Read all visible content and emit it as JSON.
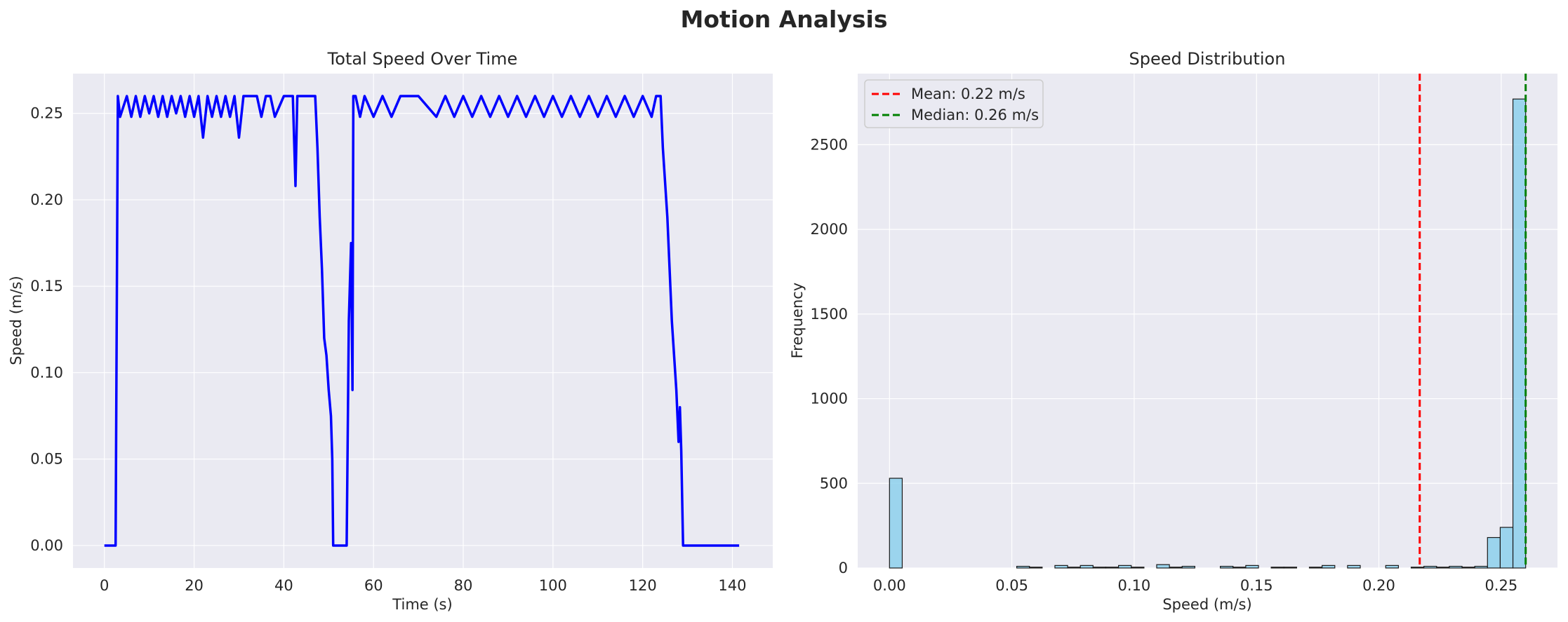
{
  "figure": {
    "title": "Motion Analysis"
  },
  "chart_data": [
    {
      "type": "line",
      "title": "Total Speed Over Time",
      "xlabel": "Time (s)",
      "ylabel": "Speed (m/s)",
      "xlim": [
        -7,
        149
      ],
      "ylim": [
        -0.013,
        0.273
      ],
      "xticks": [
        0,
        20,
        40,
        60,
        80,
        100,
        120,
        140
      ],
      "yticks": [
        0.0,
        0.05,
        0.1,
        0.15,
        0.2,
        0.25
      ],
      "grid": true,
      "colors": {
        "line": "#0000ff",
        "background": "#eaeaf2"
      },
      "series": [
        {
          "x": [
            0,
            2.5,
            3.0,
            3.5,
            5,
            6,
            7,
            8,
            9,
            10,
            11,
            12,
            13,
            14,
            15,
            16,
            17,
            18,
            19,
            20,
            21,
            22,
            23,
            24,
            25,
            26,
            27,
            28,
            29,
            30,
            31,
            32,
            34,
            35,
            36,
            37,
            38,
            40,
            41,
            42,
            42.6,
            43,
            44,
            45,
            46,
            47,
            47.5,
            48,
            48.5,
            49,
            49.5,
            50,
            50.5,
            50.8,
            51,
            54,
            54.5,
            55,
            55.3,
            55.5,
            56,
            57,
            58,
            60,
            62,
            64,
            66,
            70,
            74,
            76,
            78,
            80,
            82,
            84,
            86,
            88,
            90,
            92,
            94,
            96,
            98,
            100,
            102,
            104,
            106,
            108,
            110,
            112,
            114,
            116,
            118,
            120,
            122,
            123,
            124,
            124.5,
            125,
            125.5,
            126,
            126.5,
            127,
            127.5,
            128,
            128.3,
            128.6,
            129,
            130,
            141.5
          ],
          "y": [
            0,
            0,
            0.26,
            0.248,
            0.26,
            0.248,
            0.26,
            0.248,
            0.26,
            0.25,
            0.26,
            0.248,
            0.26,
            0.248,
            0.26,
            0.25,
            0.26,
            0.248,
            0.26,
            0.248,
            0.26,
            0.236,
            0.26,
            0.248,
            0.26,
            0.248,
            0.26,
            0.248,
            0.26,
            0.236,
            0.26,
            0.26,
            0.26,
            0.248,
            0.26,
            0.26,
            0.248,
            0.26,
            0.26,
            0.26,
            0.208,
            0.26,
            0.26,
            0.26,
            0.26,
            0.26,
            0.23,
            0.19,
            0.16,
            0.12,
            0.11,
            0.09,
            0.075,
            0.05,
            0,
            0,
            0.13,
            0.175,
            0.09,
            0.26,
            0.26,
            0.248,
            0.26,
            0.248,
            0.26,
            0.248,
            0.26,
            0.26,
            0.248,
            0.26,
            0.248,
            0.26,
            0.248,
            0.26,
            0.248,
            0.26,
            0.248,
            0.26,
            0.248,
            0.26,
            0.248,
            0.26,
            0.248,
            0.26,
            0.248,
            0.26,
            0.248,
            0.26,
            0.248,
            0.26,
            0.248,
            0.26,
            0.248,
            0.26,
            0.26,
            0.23,
            0.21,
            0.19,
            0.16,
            0.13,
            0.11,
            0.09,
            0.06,
            0.08,
            0.055,
            0,
            0,
            0
          ]
        }
      ]
    },
    {
      "type": "bar",
      "title": "Speed Distribution",
      "xlabel": "Speed (m/s)",
      "ylabel": "Frequency",
      "xlim": [
        -0.013,
        0.273
      ],
      "ylim": [
        0,
        2920
      ],
      "xticks": [
        0.0,
        0.05,
        0.1,
        0.15,
        0.2,
        0.25
      ],
      "yticks": [
        0,
        500,
        1000,
        1500,
        2000,
        2500
      ],
      "grid": true,
      "bin_width": 0.0052,
      "colors": {
        "bar": "#87ceeb",
        "edge": "#1a1a1a",
        "mean": "#ff0000",
        "median": "#008000",
        "background": "#eaeaf2"
      },
      "bins": [
        0.0,
        0.0052,
        0.0104,
        0.0156,
        0.0208,
        0.026,
        0.0312,
        0.0364,
        0.0416,
        0.0468,
        0.052,
        0.0572,
        0.0624,
        0.0676,
        0.0728,
        0.078,
        0.0832,
        0.0884,
        0.0936,
        0.0988,
        0.104,
        0.1092,
        0.1144,
        0.1196,
        0.1248,
        0.13,
        0.1352,
        0.1404,
        0.1456,
        0.1508,
        0.156,
        0.1612,
        0.1664,
        0.1716,
        0.1768,
        0.182,
        0.1872,
        0.1924,
        0.1976,
        0.2028,
        0.208,
        0.2132,
        0.2184,
        0.2236,
        0.2288,
        0.234,
        0.2392,
        0.2444,
        0.2496,
        0.2548
      ],
      "counts": [
        530,
        0,
        0,
        0,
        0,
        0,
        0,
        0,
        0,
        0,
        10,
        5,
        0,
        15,
        5,
        15,
        5,
        5,
        15,
        5,
        0,
        20,
        5,
        10,
        0,
        0,
        10,
        5,
        15,
        0,
        5,
        5,
        0,
        5,
        15,
        0,
        15,
        0,
        0,
        15,
        0,
        5,
        10,
        5,
        10,
        5,
        10,
        180,
        240,
        2770
      ],
      "vlines": [
        {
          "label": "Mean: 0.22 m/s",
          "x": 0.2167,
          "style": "dashed",
          "color": "#ff0000"
        },
        {
          "label": "Median: 0.26 m/s",
          "x": 0.26,
          "style": "dashed",
          "color": "#008000"
        }
      ],
      "legend": "top-left"
    }
  ]
}
